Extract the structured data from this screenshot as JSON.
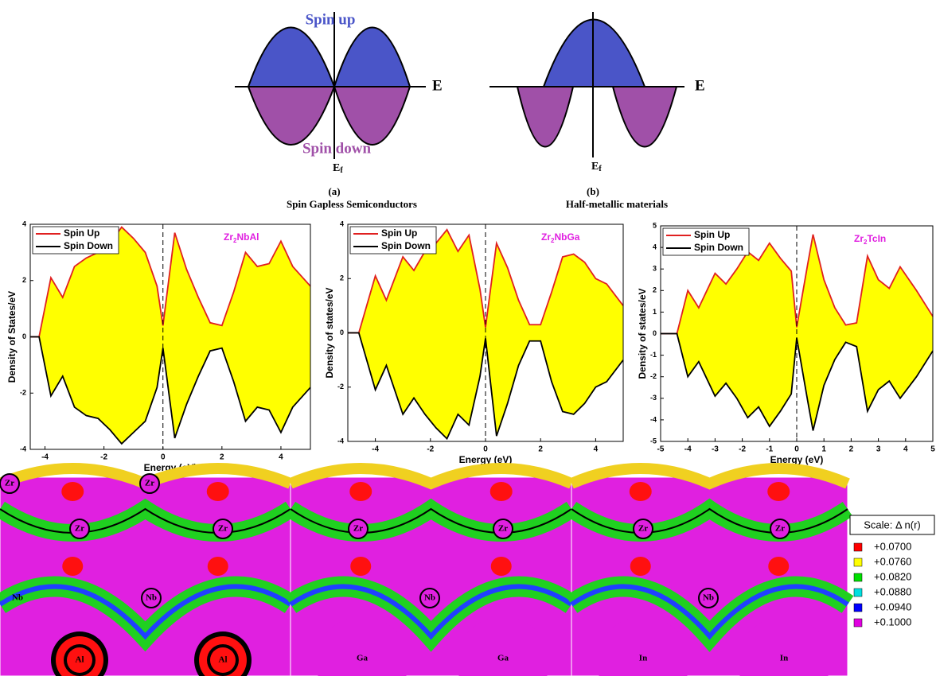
{
  "schematics": [
    {
      "top": "Spin up",
      "bottom": "Spin down",
      "axis": "E",
      "fermi": "E",
      "fermi_sub": "f",
      "letter": "(a)",
      "caption": "Spin Gapless Semiconductors"
    },
    {
      "axis": "E",
      "fermi": "E",
      "fermi_sub": "f",
      "letter": "(b)",
      "caption": "Half-metallic materials"
    }
  ],
  "chart_data": [
    {
      "type": "area",
      "xlabel": "Energy (eV)",
      "ylabel": "Density of States/eV",
      "annotation": [
        "Zr",
        "2",
        "NbAl"
      ],
      "x": [
        -4.5,
        -4.2,
        -3.8,
        -3.4,
        -3,
        -2.6,
        -2.2,
        -1.8,
        -1.4,
        -1,
        -0.6,
        -0.2,
        0,
        0.4,
        0.8,
        1.2,
        1.6,
        2,
        2.4,
        2.8,
        3.2,
        3.6,
        4,
        4.4,
        5
      ],
      "series": [
        {
          "name": "Spin Up",
          "color": "#e02020",
          "values": [
            0,
            0,
            2.1,
            1.4,
            2.5,
            2.8,
            3,
            3.3,
            3.9,
            3.5,
            3,
            1.8,
            0.4,
            3.7,
            2.4,
            1.4,
            0.5,
            0.4,
            1.6,
            3,
            2.5,
            2.6,
            3.4,
            2.5,
            1.8
          ]
        },
        {
          "name": "Spin Down",
          "color": "#000000",
          "values": [
            0,
            0,
            -2.1,
            -1.4,
            -2.5,
            -2.8,
            -2.9,
            -3.3,
            -3.8,
            -3.4,
            -3,
            -1.8,
            -0.4,
            -3.6,
            -2.4,
            -1.4,
            -0.5,
            -0.4,
            -1.6,
            -3,
            -2.5,
            -2.6,
            -3.4,
            -2.5,
            -1.8
          ]
        }
      ],
      "fill": "#ffff00",
      "xlim": [
        -4.5,
        5
      ],
      "xticks": [
        -4,
        -2,
        0,
        2,
        4
      ],
      "ylim": [
        -4,
        4
      ],
      "yticks": [
        -4,
        -2,
        0,
        2,
        4
      ]
    },
    {
      "type": "area",
      "xlabel": "Energy (eV)",
      "ylabel": "Density of states/eV",
      "annotation": [
        "Zr",
        "2",
        "NbGa"
      ],
      "x": [
        -5,
        -4.6,
        -4,
        -3.6,
        -3,
        -2.6,
        -2.2,
        -1.8,
        -1.4,
        -1,
        -0.6,
        -0.2,
        0,
        0.4,
        0.8,
        1.2,
        1.6,
        2,
        2.4,
        2.8,
        3.2,
        3.6,
        4,
        4.4,
        5
      ],
      "series": [
        {
          "name": "Spin Up",
          "color": "#e02020",
          "values": [
            0,
            0,
            2.1,
            1.2,
            2.8,
            2.3,
            3,
            3.3,
            3.8,
            3,
            3.6,
            1.6,
            0.2,
            3.3,
            2.4,
            1.2,
            0.3,
            0.3,
            1.5,
            2.8,
            2.9,
            2.6,
            2,
            1.8,
            1
          ]
        },
        {
          "name": "Spin Down",
          "color": "#000000",
          "values": [
            0,
            0,
            -2.1,
            -1.2,
            -3,
            -2.4,
            -3,
            -3.5,
            -3.9,
            -3,
            -3.4,
            -1.6,
            -0.2,
            -3.8,
            -2.6,
            -1.2,
            -0.3,
            -0.3,
            -1.8,
            -2.9,
            -3,
            -2.6,
            -2,
            -1.8,
            -1
          ]
        }
      ],
      "fill": "#ffff00",
      "xlim": [
        -5,
        5
      ],
      "xticks": [
        -4,
        -2,
        0,
        2,
        4
      ],
      "ylim": [
        -4,
        4
      ],
      "yticks": [
        -4,
        -2,
        0,
        2,
        4
      ]
    },
    {
      "type": "area",
      "xlabel": "Energy (eV)",
      "ylabel": "Density of states/eV",
      "annotation": [
        "Zr",
        "2",
        "TcIn"
      ],
      "x": [
        -5,
        -4.4,
        -4,
        -3.6,
        -3,
        -2.6,
        -2.2,
        -1.8,
        -1.4,
        -1,
        -0.6,
        -0.2,
        0,
        0.4,
        0.6,
        1,
        1.4,
        1.8,
        2.2,
        2.6,
        3,
        3.4,
        3.8,
        4.4,
        5
      ],
      "series": [
        {
          "name": "Spin Up",
          "color": "#e02020",
          "values": [
            0,
            0,
            2,
            1.2,
            2.8,
            2.3,
            3,
            3.8,
            3.4,
            4.2,
            3.5,
            2.9,
            0.3,
            3.2,
            4.6,
            2.5,
            1.2,
            0.4,
            0.5,
            3.6,
            2.5,
            2.1,
            3.1,
            2,
            0.8
          ]
        },
        {
          "name": "Spin Down",
          "color": "#000000",
          "values": [
            0,
            0,
            -2,
            -1.3,
            -2.9,
            -2.3,
            -3,
            -3.9,
            -3.4,
            -4.3,
            -3.6,
            -2.8,
            -0.2,
            -3.1,
            -4.5,
            -2.4,
            -1.2,
            -0.4,
            -0.6,
            -3.6,
            -2.6,
            -2.2,
            -3,
            -2,
            -0.8
          ]
        }
      ],
      "fill": "#ffff00",
      "xlim": [
        -5,
        5
      ],
      "xticks": [
        -5,
        -4,
        -3,
        -2,
        -1,
        0,
        1,
        2,
        3,
        4,
        5
      ],
      "ylim": [
        -5,
        5
      ],
      "yticks": [
        -5,
        -4,
        -3,
        -2,
        -1,
        0,
        1,
        2,
        3,
        4,
        5
      ]
    }
  ],
  "contour": {
    "labels": [
      "Zr",
      "Zr",
      "Zr",
      "Zr",
      "Nb",
      "Nb",
      "Al",
      "Al",
      "Zr",
      "Zr",
      "Nb",
      "Ga",
      "Ga",
      "Zr",
      "Zr",
      "Nb",
      "In",
      "In"
    ],
    "scale": {
      "title": "Scale:   Δ n(r)",
      "levels": [
        {
          "label": "+0.0700",
          "color": "#ff0000"
        },
        {
          "label": "+0.0760",
          "color": "#ffff00"
        },
        {
          "label": "+0.0820",
          "color": "#00e000"
        },
        {
          "label": "+0.0880",
          "color": "#00e0e0"
        },
        {
          "label": "+0.0940",
          "color": "#0000ff"
        },
        {
          "label": "+0.1000",
          "color": "#e000e0"
        }
      ]
    }
  }
}
